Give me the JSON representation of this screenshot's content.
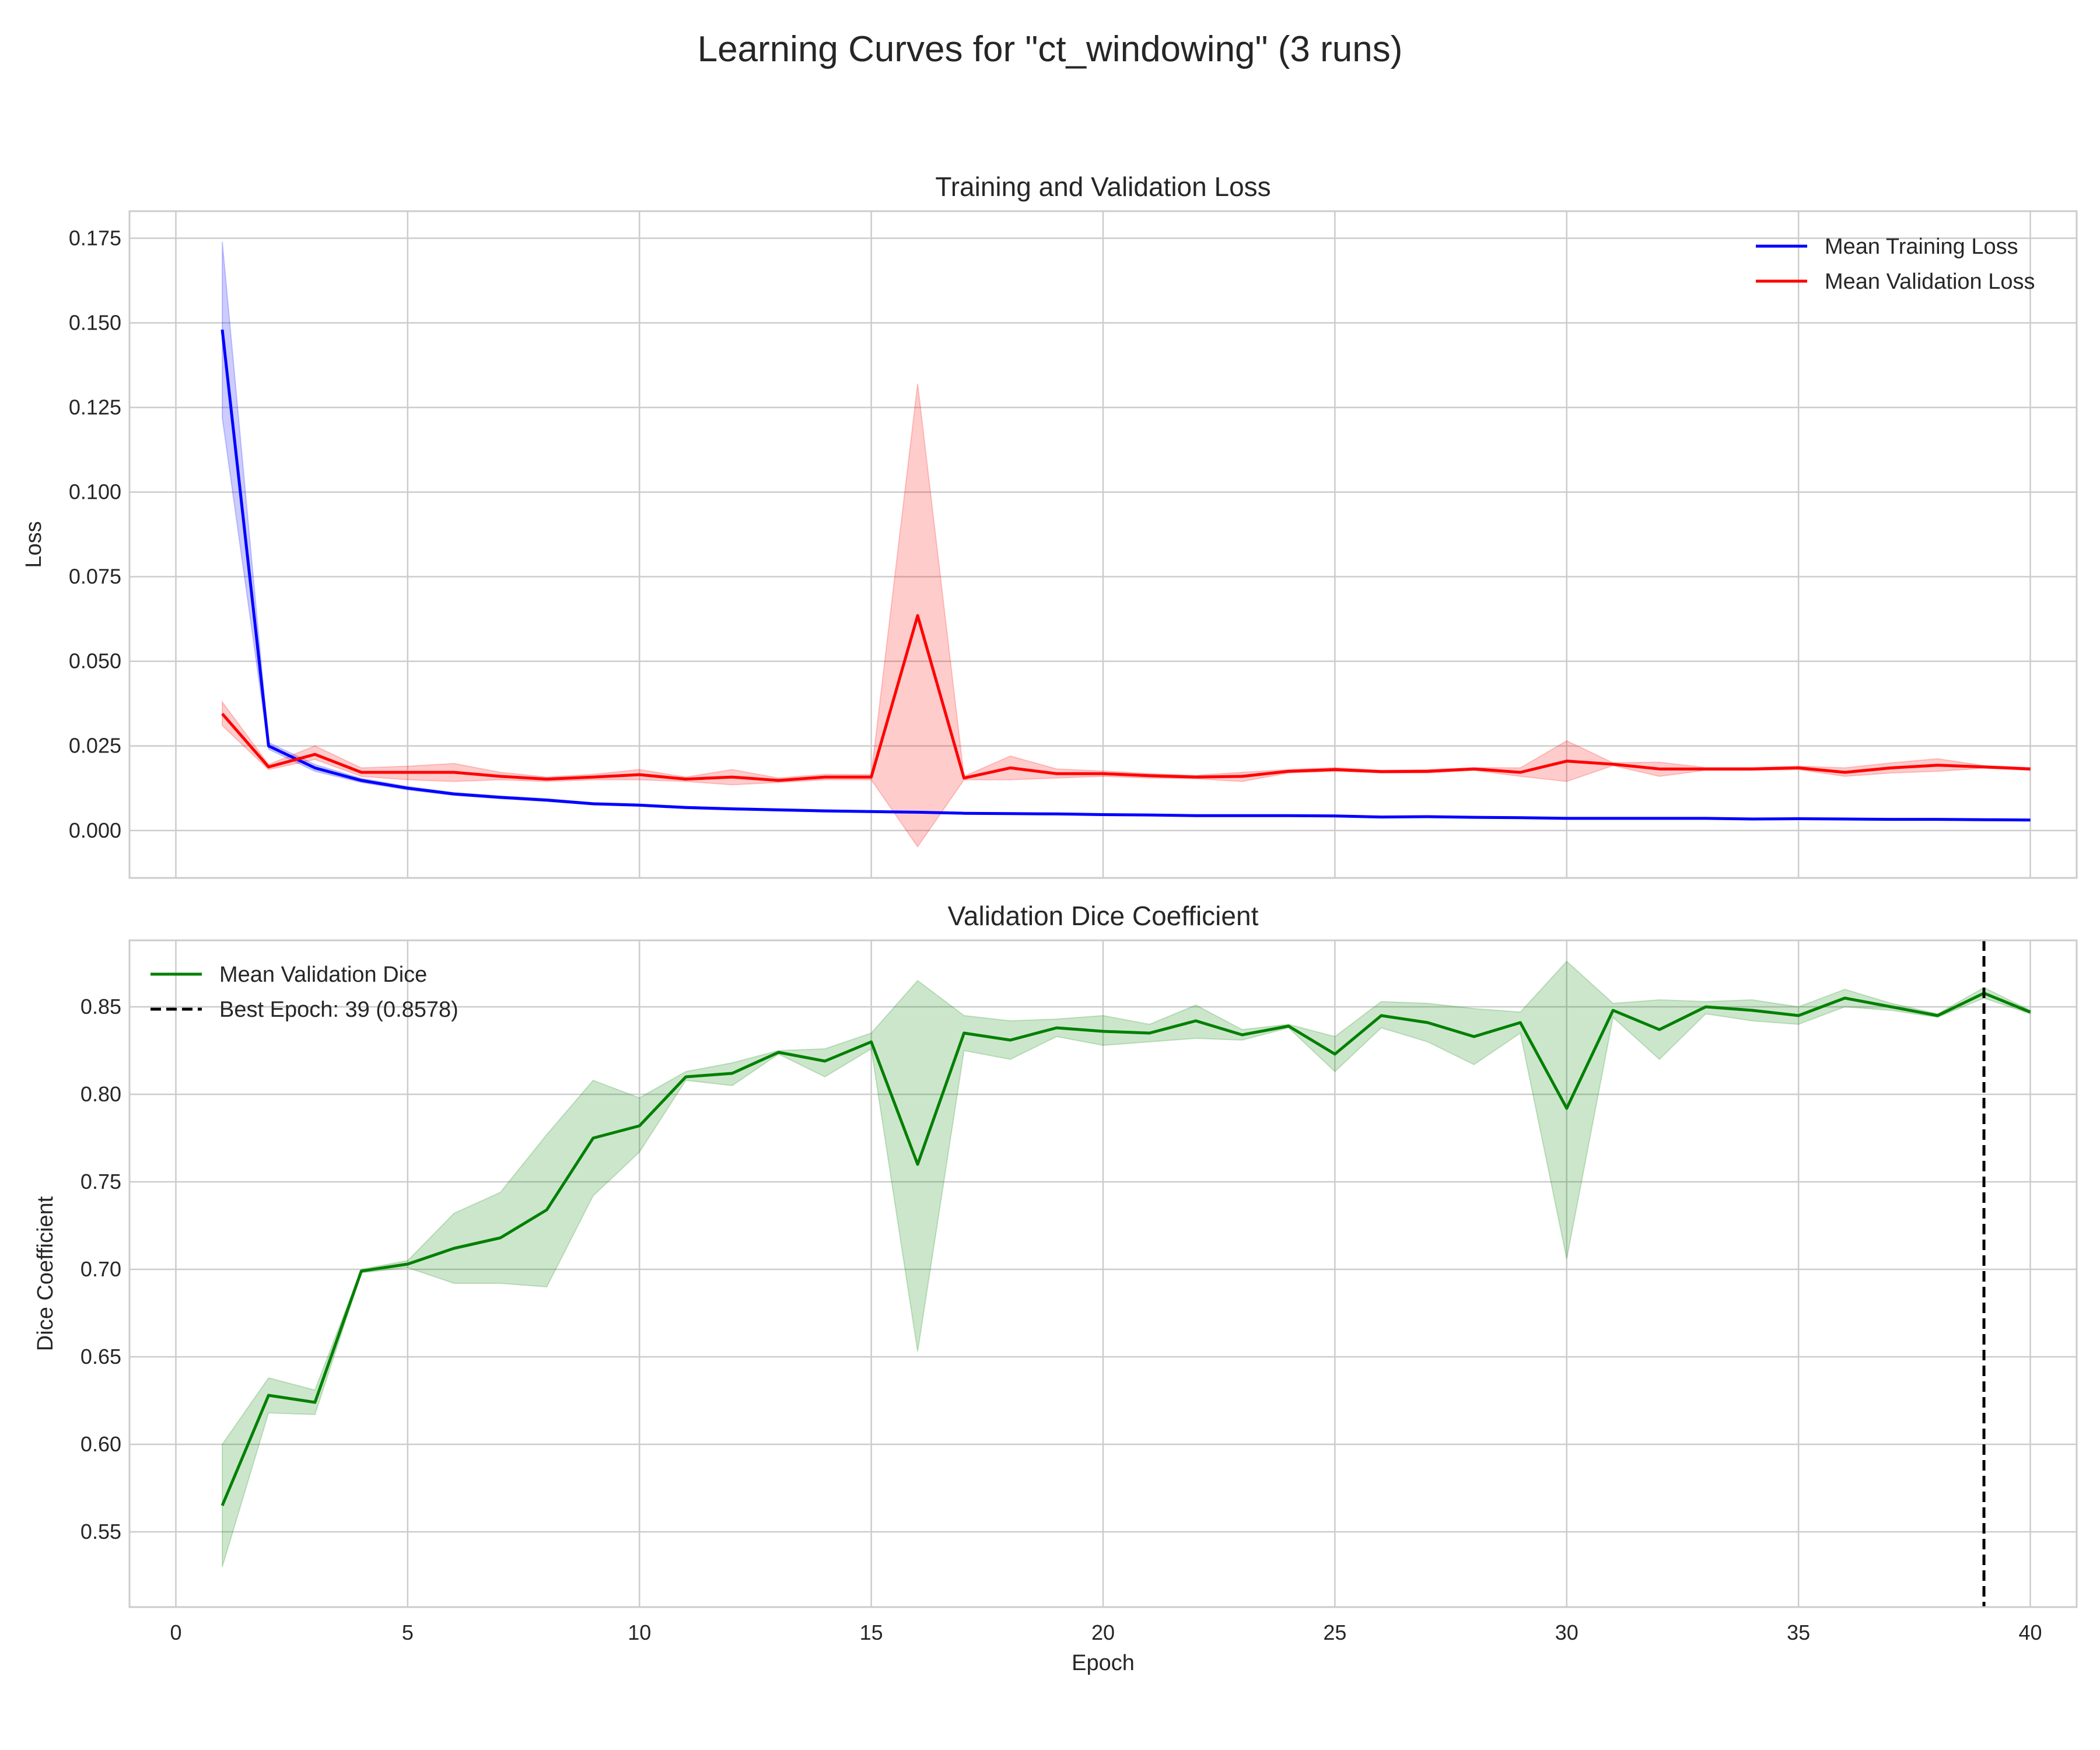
{
  "figure": {
    "title": "Learning Curves for \"ct_windowing\" (3 runs)"
  },
  "chart_data": [
    {
      "type": "line",
      "title": "Training and Validation Loss",
      "xlabel": "",
      "ylabel": "Loss",
      "xlim": [
        -1,
        41
      ],
      "ylim": [
        -0.014,
        0.183
      ],
      "xticks": [
        0,
        5,
        10,
        15,
        20,
        25,
        30,
        35,
        40
      ],
      "yticks": [
        0.0,
        0.025,
        0.05,
        0.075,
        0.1,
        0.125,
        0.15,
        0.175
      ],
      "ytick_labels": [
        "0.000",
        "0.025",
        "0.050",
        "0.075",
        "0.100",
        "0.125",
        "0.150",
        "0.175"
      ],
      "grid": true,
      "legend_position": "top-right",
      "x": [
        1,
        2,
        3,
        4,
        5,
        6,
        7,
        8,
        9,
        10,
        11,
        12,
        13,
        14,
        15,
        16,
        17,
        18,
        19,
        20,
        21,
        22,
        23,
        24,
        25,
        26,
        27,
        28,
        29,
        30,
        31,
        32,
        33,
        34,
        35,
        36,
        37,
        38,
        39,
        40
      ],
      "series": [
        {
          "name": "Mean Training Loss",
          "color": "#0000ff",
          "values": [
            0.148,
            0.025,
            0.0185,
            0.0148,
            0.0125,
            0.0108,
            0.0098,
            0.009,
            0.0079,
            0.0075,
            0.0068,
            0.0064,
            0.0061,
            0.0058,
            0.0056,
            0.0054,
            0.0051,
            0.005,
            0.0049,
            0.0047,
            0.0046,
            0.0044,
            0.0044,
            0.0044,
            0.0043,
            0.004,
            0.0041,
            0.0039,
            0.0038,
            0.0036,
            0.0036,
            0.0036,
            0.0036,
            0.0034,
            0.0035,
            0.0034,
            0.0033,
            0.0033,
            0.0032,
            0.0031
          ],
          "lower": [
            0.122,
            0.024,
            0.0175,
            0.0142,
            0.012,
            0.0104,
            0.0094,
            0.0086,
            0.0076,
            0.0072,
            0.0065,
            0.0061,
            0.0058,
            0.0055,
            0.0054,
            0.0052,
            0.0049,
            0.0048,
            0.0047,
            0.0045,
            0.0044,
            0.0042,
            0.0042,
            0.0042,
            0.0041,
            0.0038,
            0.0039,
            0.0037,
            0.0036,
            0.0034,
            0.0034,
            0.0034,
            0.0034,
            0.0032,
            0.0033,
            0.0032,
            0.0031,
            0.0031,
            0.003,
            0.0029
          ],
          "upper": [
            0.174,
            0.026,
            0.0195,
            0.0154,
            0.013,
            0.0112,
            0.0102,
            0.0094,
            0.0082,
            0.0078,
            0.0071,
            0.0067,
            0.0064,
            0.0061,
            0.0058,
            0.0056,
            0.0053,
            0.0052,
            0.0051,
            0.0049,
            0.0048,
            0.0046,
            0.0046,
            0.0046,
            0.0045,
            0.0042,
            0.0043,
            0.0041,
            0.004,
            0.0038,
            0.0038,
            0.0038,
            0.0038,
            0.0036,
            0.0037,
            0.0036,
            0.0035,
            0.0035,
            0.0034,
            0.0033
          ]
        },
        {
          "name": "Mean Validation Loss",
          "color": "#ff0000",
          "values": [
            0.0345,
            0.0188,
            0.0225,
            0.0172,
            0.0172,
            0.0172,
            0.016,
            0.0152,
            0.0158,
            0.0165,
            0.0152,
            0.0158,
            0.0148,
            0.0158,
            0.0158,
            0.0635,
            0.0155,
            0.0185,
            0.0168,
            0.0168,
            0.0162,
            0.0158,
            0.016,
            0.0175,
            0.018,
            0.0174,
            0.0175,
            0.0182,
            0.0172,
            0.0205,
            0.0196,
            0.0182,
            0.0182,
            0.0182,
            0.0185,
            0.0172,
            0.0185,
            0.0193,
            0.0188,
            0.0182
          ],
          "lower": [
            0.031,
            0.018,
            0.021,
            0.016,
            0.015,
            0.0145,
            0.015,
            0.0145,
            0.015,
            0.015,
            0.0145,
            0.0135,
            0.0142,
            0.015,
            0.015,
            -0.0048,
            0.015,
            0.015,
            0.0155,
            0.016,
            0.0155,
            0.0153,
            0.0145,
            0.017,
            0.0175,
            0.017,
            0.017,
            0.0178,
            0.016,
            0.0145,
            0.0192,
            0.016,
            0.0178,
            0.0178,
            0.018,
            0.016,
            0.017,
            0.0175,
            0.0184,
            0.0178
          ],
          "upper": [
            0.038,
            0.0195,
            0.025,
            0.0185,
            0.019,
            0.0198,
            0.0172,
            0.0158,
            0.0166,
            0.018,
            0.0158,
            0.018,
            0.0155,
            0.0166,
            0.0165,
            0.132,
            0.016,
            0.022,
            0.0182,
            0.0176,
            0.0168,
            0.0163,
            0.0172,
            0.018,
            0.0186,
            0.0178,
            0.018,
            0.0186,
            0.0185,
            0.0265,
            0.02,
            0.0202,
            0.0186,
            0.0186,
            0.019,
            0.0185,
            0.02,
            0.0212,
            0.0192,
            0.0186
          ]
        }
      ]
    },
    {
      "type": "line",
      "title": "Validation Dice Coefficient",
      "xlabel": "Epoch",
      "ylabel": "Dice Coefficient",
      "xlim": [
        -1,
        41
      ],
      "ylim": [
        0.507,
        0.888
      ],
      "xticks": [
        0,
        5,
        10,
        15,
        20,
        25,
        30,
        35,
        40
      ],
      "yticks": [
        0.55,
        0.6,
        0.65,
        0.7,
        0.75,
        0.8,
        0.85
      ],
      "ytick_labels": [
        "0.55",
        "0.60",
        "0.65",
        "0.70",
        "0.75",
        "0.80",
        "0.85"
      ],
      "grid": true,
      "legend_position": "top-left",
      "x": [
        1,
        2,
        3,
        4,
        5,
        6,
        7,
        8,
        9,
        10,
        11,
        12,
        13,
        14,
        15,
        16,
        17,
        18,
        19,
        20,
        21,
        22,
        23,
        24,
        25,
        26,
        27,
        28,
        29,
        30,
        31,
        32,
        33,
        34,
        35,
        36,
        37,
        38,
        39,
        40
      ],
      "series": [
        {
          "name": "Mean Validation Dice",
          "color": "#008000",
          "values": [
            0.565,
            0.628,
            0.624,
            0.699,
            0.703,
            0.712,
            0.718,
            0.734,
            0.775,
            0.782,
            0.81,
            0.812,
            0.824,
            0.819,
            0.83,
            0.76,
            0.835,
            0.831,
            0.838,
            0.836,
            0.835,
            0.842,
            0.834,
            0.839,
            0.823,
            0.845,
            0.841,
            0.833,
            0.841,
            0.792,
            0.848,
            0.837,
            0.85,
            0.848,
            0.845,
            0.855,
            0.85,
            0.845,
            0.8578,
            0.847
          ],
          "lower": [
            0.53,
            0.618,
            0.617,
            0.698,
            0.701,
            0.692,
            0.692,
            0.69,
            0.742,
            0.767,
            0.808,
            0.805,
            0.823,
            0.81,
            0.826,
            0.653,
            0.825,
            0.82,
            0.833,
            0.828,
            0.83,
            0.832,
            0.831,
            0.838,
            0.813,
            0.838,
            0.83,
            0.817,
            0.835,
            0.706,
            0.844,
            0.82,
            0.846,
            0.842,
            0.84,
            0.85,
            0.848,
            0.844,
            0.855,
            0.846
          ],
          "upper": [
            0.6,
            0.638,
            0.631,
            0.7,
            0.705,
            0.732,
            0.744,
            0.777,
            0.808,
            0.798,
            0.813,
            0.818,
            0.825,
            0.826,
            0.835,
            0.865,
            0.845,
            0.842,
            0.843,
            0.845,
            0.84,
            0.851,
            0.837,
            0.84,
            0.833,
            0.853,
            0.852,
            0.849,
            0.847,
            0.876,
            0.852,
            0.854,
            0.853,
            0.854,
            0.85,
            0.86,
            0.852,
            0.846,
            0.861,
            0.848
          ]
        }
      ],
      "best_epoch": {
        "label": "Best Epoch: 39 (0.8578)",
        "x": 39,
        "value": 0.8578,
        "color": "#000000",
        "style": "dashed"
      }
    }
  ]
}
